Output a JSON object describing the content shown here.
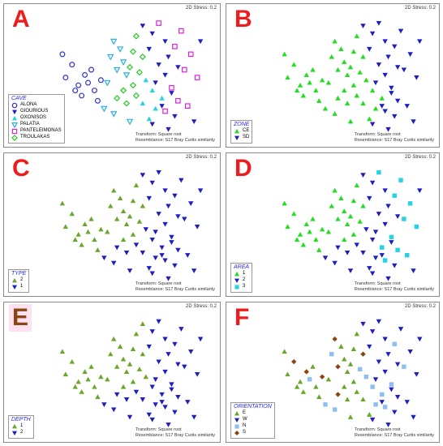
{
  "common": {
    "stress": "2D Stress: 0.2",
    "transform": "Transform: Square root",
    "resemblance": "Resemblance: S17 Bray Curtis similarity"
  },
  "colors": {
    "navy": "#1f1fbf",
    "cyan": "#27d3e0",
    "green": "#22dd22",
    "olive": "#6aa62a",
    "magenta": "#e020e0",
    "lightblue": "#8fbff0",
    "brown": "#8b4513",
    "red": "#ee1c1c"
  },
  "panels": [
    {
      "letter": "A",
      "letter_color": "#ee1c1c",
      "letter_bg": "",
      "legend_title": "CAVE",
      "legend": [
        {
          "name": "ALONA",
          "marker": "circle",
          "color": "#3333cc"
        },
        {
          "name": "GIOURIOUS",
          "marker": "tri-down-filled",
          "color": "#1f1fbf"
        },
        {
          "name": "OXONISOS",
          "marker": "tri-up-filled",
          "color": "#27d3e0"
        },
        {
          "name": "PALATIA",
          "marker": "tri-down-open",
          "color": "#27b0e0"
        },
        {
          "name": "PANTELEIMONAS",
          "marker": "square-open",
          "color": "#e020e0"
        },
        {
          "name": "TROULAKAS",
          "marker": "diamond-open",
          "color": "#22cc22"
        }
      ]
    },
    {
      "letter": "B",
      "letter_color": "#ee1c1c",
      "letter_bg": "",
      "legend_title": "ZONE",
      "legend": [
        {
          "name": "CE",
          "marker": "tri-up-filled",
          "color": "#22dd22"
        },
        {
          "name": "SD",
          "marker": "tri-down-filled",
          "color": "#1f1fbf"
        }
      ]
    },
    {
      "letter": "C",
      "letter_color": "#ee1c1c",
      "letter_bg": "",
      "legend_title": "TYPE",
      "legend": [
        {
          "name": "2",
          "marker": "tri-up-filled",
          "color": "#6aa62a"
        },
        {
          "name": "1",
          "marker": "tri-down-filled",
          "color": "#1f1fbf"
        }
      ]
    },
    {
      "letter": "D",
      "letter_color": "#ee1c1c",
      "letter_bg": "",
      "legend_title": "AREA",
      "legend": [
        {
          "name": "1",
          "marker": "tri-up-filled",
          "color": "#22dd22"
        },
        {
          "name": "2",
          "marker": "tri-down-filled",
          "color": "#1f1fbf"
        },
        {
          "name": "3",
          "marker": "square-filled",
          "color": "#27d3e0"
        }
      ]
    },
    {
      "letter": "E",
      "letter_color": "#8b4513",
      "letter_bg": "#ffe0f0",
      "legend_title": "DEPTH",
      "legend": [
        {
          "name": "1",
          "marker": "tri-up-filled",
          "color": "#6aa62a"
        },
        {
          "name": "2",
          "marker": "tri-down-filled",
          "color": "#1f1fbf"
        }
      ]
    },
    {
      "letter": "F",
      "letter_color": "#ee1c1c",
      "letter_bg": "",
      "legend_title": "ORIENTATION",
      "legend": [
        {
          "name": "E",
          "marker": "tri-up-filled",
          "color": "#6aa62a"
        },
        {
          "name": "W",
          "marker": "tri-down-filled",
          "color": "#1f1fbf"
        },
        {
          "name": "N",
          "marker": "square-filled",
          "color": "#8fbff0"
        },
        {
          "name": "S",
          "marker": "diamond-filled",
          "color": "#8b4513"
        }
      ]
    }
  ],
  "chart_data": {
    "type": "scatter",
    "note_values": "nMDS ordination coordinates; axes unlabeled and unscaled",
    "points": [
      {
        "x": -1.9,
        "y": 1.1,
        "cave": "ALONA",
        "zone": "CE",
        "type": "2",
        "area": "1",
        "depth": "1",
        "orientation": "E"
      },
      {
        "x": -1.6,
        "y": 0.7,
        "cave": "ALONA",
        "zone": "CE",
        "type": "2",
        "area": "1",
        "depth": "1",
        "orientation": "S"
      },
      {
        "x": -1.8,
        "y": 0.2,
        "cave": "ALONA",
        "zone": "CE",
        "type": "2",
        "area": "1",
        "depth": "1",
        "orientation": "E"
      },
      {
        "x": -1.4,
        "y": -0.1,
        "cave": "ALONA",
        "zone": "CE",
        "type": "2",
        "area": "1",
        "depth": "1",
        "orientation": "E"
      },
      {
        "x": -1.2,
        "y": 0.3,
        "cave": "ALONA",
        "zone": "CE",
        "type": "2",
        "area": "1",
        "depth": "1",
        "orientation": "S"
      },
      {
        "x": -1.0,
        "y": 0.5,
        "cave": "ALONA",
        "zone": "CE",
        "type": "2",
        "area": "1",
        "depth": "1",
        "orientation": "E"
      },
      {
        "x": -1.1,
        "y": 0.0,
        "cave": "ALONA",
        "zone": "CE",
        "type": "2",
        "area": "1",
        "depth": "1",
        "orientation": "N"
      },
      {
        "x": -0.9,
        "y": -0.3,
        "cave": "ALONA",
        "zone": "CE",
        "type": "2",
        "area": "1",
        "depth": "1",
        "orientation": "E"
      },
      {
        "x": -1.3,
        "y": -0.5,
        "cave": "ALONA",
        "zone": "CE",
        "type": "2",
        "area": "1",
        "depth": "1",
        "orientation": "E"
      },
      {
        "x": -0.7,
        "y": 0.1,
        "cave": "ALONA",
        "zone": "CE",
        "type": "2",
        "area": "1",
        "depth": "1",
        "orientation": "S"
      },
      {
        "x": -1.5,
        "y": -0.3,
        "cave": "ALONA",
        "zone": "CE",
        "type": "2",
        "area": "1",
        "depth": "1",
        "orientation": "E"
      },
      {
        "x": -0.8,
        "y": -0.7,
        "cave": "ALONA",
        "zone": "CE",
        "type": "2",
        "area": "1",
        "depth": "1",
        "orientation": "E"
      },
      {
        "x": -0.3,
        "y": 1.6,
        "cave": "PALATIA",
        "zone": "CE",
        "type": "2",
        "area": "1",
        "depth": "1",
        "orientation": "S"
      },
      {
        "x": -0.1,
        "y": 1.3,
        "cave": "PALATIA",
        "zone": "CE",
        "type": "2",
        "area": "1",
        "depth": "1",
        "orientation": "E"
      },
      {
        "x": -0.4,
        "y": 1.0,
        "cave": "PALATIA",
        "zone": "CE",
        "type": "2",
        "area": "1",
        "depth": "1",
        "orientation": "N"
      },
      {
        "x": 0.0,
        "y": 0.8,
        "cave": "PALATIA",
        "zone": "CE",
        "type": "2",
        "area": "1",
        "depth": "1",
        "orientation": "E"
      },
      {
        "x": -0.2,
        "y": 0.5,
        "cave": "PALATIA",
        "zone": "CE",
        "type": "2",
        "area": "1",
        "depth": "1",
        "orientation": "S"
      },
      {
        "x": 0.1,
        "y": 0.3,
        "cave": "PALATIA",
        "zone": "CE",
        "type": "2",
        "area": "1",
        "depth": "1",
        "orientation": "E"
      },
      {
        "x": -0.5,
        "y": 0.0,
        "cave": "PALATIA",
        "zone": "CE",
        "type": "2",
        "area": "1",
        "depth": "1",
        "orientation": "E"
      },
      {
        "x": -0.3,
        "y": -1.2,
        "cave": "PALATIA",
        "zone": "CE",
        "type": "1",
        "area": "2",
        "depth": "2",
        "orientation": "N"
      },
      {
        "x": 0.2,
        "y": -1.5,
        "cave": "PALATIA",
        "zone": "CE",
        "type": "1",
        "area": "2",
        "depth": "2",
        "orientation": "E"
      },
      {
        "x": -0.6,
        "y": -1.0,
        "cave": "PALATIA",
        "zone": "CE",
        "type": "1",
        "area": "2",
        "depth": "2",
        "orientation": "N"
      },
      {
        "x": 0.4,
        "y": 1.8,
        "cave": "TROULAKAS",
        "zone": "CE",
        "type": "2",
        "area": "1",
        "depth": "1",
        "orientation": "E"
      },
      {
        "x": 0.3,
        "y": 1.2,
        "cave": "TROULAKAS",
        "zone": "CE",
        "type": "2",
        "area": "1",
        "depth": "1",
        "orientation": "E"
      },
      {
        "x": 0.6,
        "y": 1.0,
        "cave": "TROULAKAS",
        "zone": "CE",
        "type": "2",
        "area": "1",
        "depth": "1",
        "orientation": "S"
      },
      {
        "x": 0.2,
        "y": 0.6,
        "cave": "TROULAKAS",
        "zone": "CE",
        "type": "2",
        "area": "1",
        "depth": "1",
        "orientation": "E"
      },
      {
        "x": 0.5,
        "y": 0.4,
        "cave": "TROULAKAS",
        "zone": "CE",
        "type": "2",
        "area": "1",
        "depth": "1",
        "orientation": "N"
      },
      {
        "x": 0.3,
        "y": -0.1,
        "cave": "TROULAKAS",
        "zone": "CE",
        "type": "2",
        "area": "1",
        "depth": "1",
        "orientation": "E"
      },
      {
        "x": 0.0,
        "y": -0.3,
        "cave": "TROULAKAS",
        "zone": "CE",
        "type": "2",
        "area": "1",
        "depth": "1",
        "orientation": "E"
      },
      {
        "x": -0.2,
        "y": -0.6,
        "cave": "TROULAKAS",
        "zone": "CE",
        "type": "1",
        "area": "2",
        "depth": "2",
        "orientation": "S"
      },
      {
        "x": 0.1,
        "y": -0.8,
        "cave": "TROULAKAS",
        "zone": "CE",
        "type": "1",
        "area": "2",
        "depth": "2",
        "orientation": "E"
      },
      {
        "x": 0.4,
        "y": -0.5,
        "cave": "TROULAKAS",
        "zone": "CE",
        "type": "1",
        "area": "2",
        "depth": "2",
        "orientation": "E"
      },
      {
        "x": 0.7,
        "y": 0.1,
        "cave": "OXONISOS",
        "zone": "CE",
        "type": "1",
        "area": "2",
        "depth": "1",
        "orientation": "N"
      },
      {
        "x": 0.9,
        "y": -0.3,
        "cave": "OXONISOS",
        "zone": "CE",
        "type": "1",
        "area": "2",
        "depth": "2",
        "orientation": "N"
      },
      {
        "x": 0.6,
        "y": -0.8,
        "cave": "OXONISOS",
        "zone": "CE",
        "type": "1",
        "area": "2",
        "depth": "2",
        "orientation": "E"
      },
      {
        "x": 1.0,
        "y": -1.0,
        "cave": "OXONISOS",
        "zone": "CE",
        "type": "1",
        "area": "2",
        "depth": "2",
        "orientation": "N"
      },
      {
        "x": 0.8,
        "y": -1.4,
        "cave": "OXONISOS",
        "zone": "CE",
        "type": "1",
        "area": "2",
        "depth": "2",
        "orientation": "E"
      },
      {
        "x": 1.2,
        "y": -0.6,
        "cave": "OXONISOS",
        "zone": "CE",
        "type": "1",
        "area": "3",
        "depth": "2",
        "orientation": "N"
      },
      {
        "x": 1.1,
        "y": 2.3,
        "cave": "PANTELEIMONAS",
        "zone": "SD",
        "type": "1",
        "area": "3",
        "depth": "2",
        "orientation": "W"
      },
      {
        "x": 1.8,
        "y": 2.0,
        "cave": "PANTELEIMONAS",
        "zone": "SD",
        "type": "1",
        "area": "3",
        "depth": "2",
        "orientation": "W"
      },
      {
        "x": 1.6,
        "y": 1.4,
        "cave": "PANTELEIMONAS",
        "zone": "SD",
        "type": "1",
        "area": "3",
        "depth": "2",
        "orientation": "N"
      },
      {
        "x": 2.1,
        "y": 1.1,
        "cave": "PANTELEIMONAS",
        "zone": "SD",
        "type": "1",
        "area": "3",
        "depth": "2",
        "orientation": "W"
      },
      {
        "x": 1.9,
        "y": 0.5,
        "cave": "PANTELEIMONAS",
        "zone": "SD",
        "type": "1",
        "area": "3",
        "depth": "2",
        "orientation": "N"
      },
      {
        "x": 2.3,
        "y": 0.2,
        "cave": "PANTELEIMONAS",
        "zone": "SD",
        "type": "1",
        "area": "3",
        "depth": "2",
        "orientation": "W"
      },
      {
        "x": 1.5,
        "y": -0.2,
        "cave": "PANTELEIMONAS",
        "zone": "SD",
        "type": "1",
        "area": "3",
        "depth": "2",
        "orientation": "N"
      },
      {
        "x": 1.7,
        "y": -0.7,
        "cave": "PANTELEIMONAS",
        "zone": "SD",
        "type": "1",
        "area": "3",
        "depth": "2",
        "orientation": "W"
      },
      {
        "x": 1.3,
        "y": -1.1,
        "cave": "PANTELEIMONAS",
        "zone": "SD",
        "type": "1",
        "area": "3",
        "depth": "2",
        "orientation": "N"
      },
      {
        "x": 2.0,
        "y": -0.9,
        "cave": "PANTELEIMONAS",
        "zone": "SD",
        "type": "1",
        "area": "3",
        "depth": "2",
        "orientation": "W"
      },
      {
        "x": 0.9,
        "y": 1.9,
        "cave": "GIOURIOUS",
        "zone": "SD",
        "type": "1",
        "area": "2",
        "depth": "2",
        "orientation": "W"
      },
      {
        "x": 1.3,
        "y": 1.6,
        "cave": "GIOURIOUS",
        "zone": "SD",
        "type": "1",
        "area": "2",
        "depth": "2",
        "orientation": "W"
      },
      {
        "x": 0.8,
        "y": 1.3,
        "cave": "GIOURIOUS",
        "zone": "SD",
        "type": "1",
        "area": "2",
        "depth": "2",
        "orientation": "W"
      },
      {
        "x": 1.4,
        "y": 1.0,
        "cave": "GIOURIOUS",
        "zone": "SD",
        "type": "1",
        "area": "2",
        "depth": "2",
        "orientation": "W"
      },
      {
        "x": 1.1,
        "y": 0.7,
        "cave": "GIOURIOUS",
        "zone": "SD",
        "type": "1",
        "area": "2",
        "depth": "2",
        "orientation": "W"
      },
      {
        "x": 1.7,
        "y": 0.6,
        "cave": "GIOURIOUS",
        "zone": "SD",
        "type": "1",
        "area": "2",
        "depth": "2",
        "orientation": "W"
      },
      {
        "x": 1.3,
        "y": 0.3,
        "cave": "GIOURIOUS",
        "zone": "SD",
        "type": "1",
        "area": "2",
        "depth": "2",
        "orientation": "W"
      },
      {
        "x": 1.0,
        "y": 0.0,
        "cave": "GIOURIOUS",
        "zone": "SD",
        "type": "1",
        "area": "2",
        "depth": "2",
        "orientation": "W"
      },
      {
        "x": 1.5,
        "y": -0.4,
        "cave": "GIOURIOUS",
        "zone": "SD",
        "type": "1",
        "area": "2",
        "depth": "2",
        "orientation": "W"
      },
      {
        "x": 1.2,
        "y": -0.9,
        "cave": "GIOURIOUS",
        "zone": "SD",
        "type": "1",
        "area": "2",
        "depth": "2",
        "orientation": "W"
      },
      {
        "x": 1.6,
        "y": -1.3,
        "cave": "GIOURIOUS",
        "zone": "SD",
        "type": "1",
        "area": "2",
        "depth": "2",
        "orientation": "W"
      },
      {
        "x": 0.9,
        "y": -1.6,
        "cave": "GIOURIOUS",
        "zone": "SD",
        "type": "1",
        "area": "2",
        "depth": "2",
        "orientation": "W"
      },
      {
        "x": 1.4,
        "y": -1.8,
        "cave": "GIOURIOUS",
        "zone": "SD",
        "type": "1",
        "area": "2",
        "depth": "2",
        "orientation": "W"
      },
      {
        "x": 2.2,
        "y": -1.5,
        "cave": "GIOURIOUS",
        "zone": "SD",
        "type": "1",
        "area": "2",
        "depth": "2",
        "orientation": "W"
      },
      {
        "x": 0.6,
        "y": 2.2,
        "cave": "GIOURIOUS",
        "zone": "SD",
        "type": "1",
        "area": "2",
        "depth": "1",
        "orientation": "W"
      },
      {
        "x": 2.4,
        "y": 1.6,
        "cave": "GIOURIOUS",
        "zone": "SD",
        "type": "1",
        "area": "2",
        "depth": "2",
        "orientation": "W"
      }
    ]
  }
}
